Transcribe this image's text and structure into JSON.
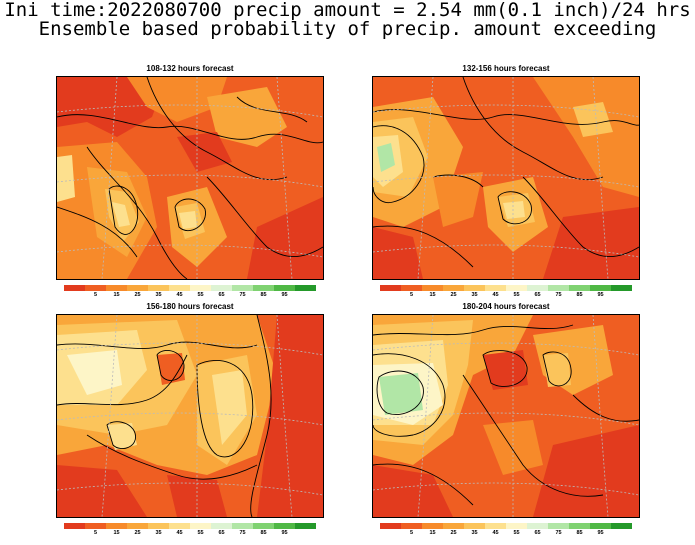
{
  "header": {
    "line1": "Ini time:2022080700 precip amount = 2.54 mm(0.1 inch)/24 hrs",
    "line2": "Ensemble based probability of precip. amount exceeding"
  },
  "panels": [
    {
      "title": "108-132 hours forecast"
    },
    {
      "title": "132-156 hours forecast"
    },
    {
      "title": "156-180 hours forecast"
    },
    {
      "title": "180-204 hours forecast"
    }
  ],
  "colorbar": {
    "colors": [
      "#e23b1e",
      "#ef5e22",
      "#f78a2a",
      "#f9a63a",
      "#fbc45b",
      "#fde08e",
      "#fdf5c7",
      "#ddf3d3",
      "#b1e6a6",
      "#7fd271",
      "#4fb845",
      "#24992a"
    ],
    "labels": [
      "5",
      "15",
      "25",
      "35",
      "45",
      "55",
      "65",
      "75",
      "85",
      "95"
    ]
  }
}
